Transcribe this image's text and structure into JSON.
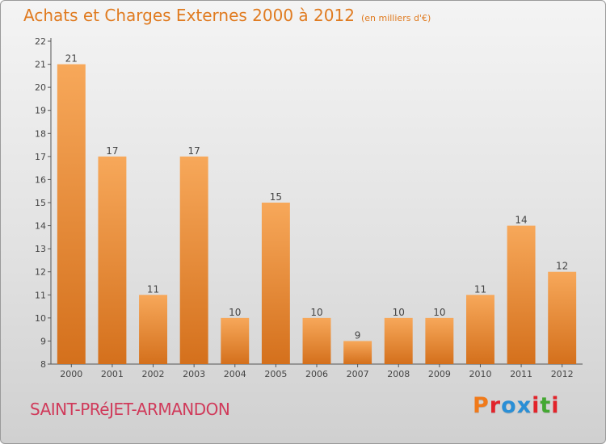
{
  "title": "Achats et Charges Externes 2000 à 2012",
  "unit_note": "(en milliers d'€)",
  "place": "SAINT-PRéJET-ARMANDON",
  "logo": {
    "text": "Proxiti",
    "colors": [
      "#f07a1a",
      "#e2232a",
      "#2a8fd6",
      "#2a8fd6",
      "#e2232a",
      "#44a832",
      "#e2232a"
    ]
  },
  "colors": {
    "bar_light": "#f7a85a",
    "bar_dark": "#d4701c",
    "title": "#e07b20",
    "place": "#d03a5a"
  },
  "chart_data": {
    "type": "bar",
    "title": "Achats et Charges Externes 2000 à 2012",
    "subtitle": "(en milliers d'€)",
    "categories": [
      "2000",
      "2001",
      "2002",
      "2003",
      "2004",
      "2005",
      "2006",
      "2007",
      "2008",
      "2009",
      "2010",
      "2011",
      "2012"
    ],
    "values": [
      21,
      17,
      11,
      17,
      10,
      15,
      10,
      9,
      10,
      10,
      11,
      14,
      12
    ],
    "ylim": [
      8,
      22
    ],
    "yticks": [
      8,
      9,
      10,
      11,
      12,
      13,
      14,
      15,
      16,
      17,
      18,
      19,
      20,
      21,
      22
    ],
    "grid": false,
    "data_labels": true
  }
}
